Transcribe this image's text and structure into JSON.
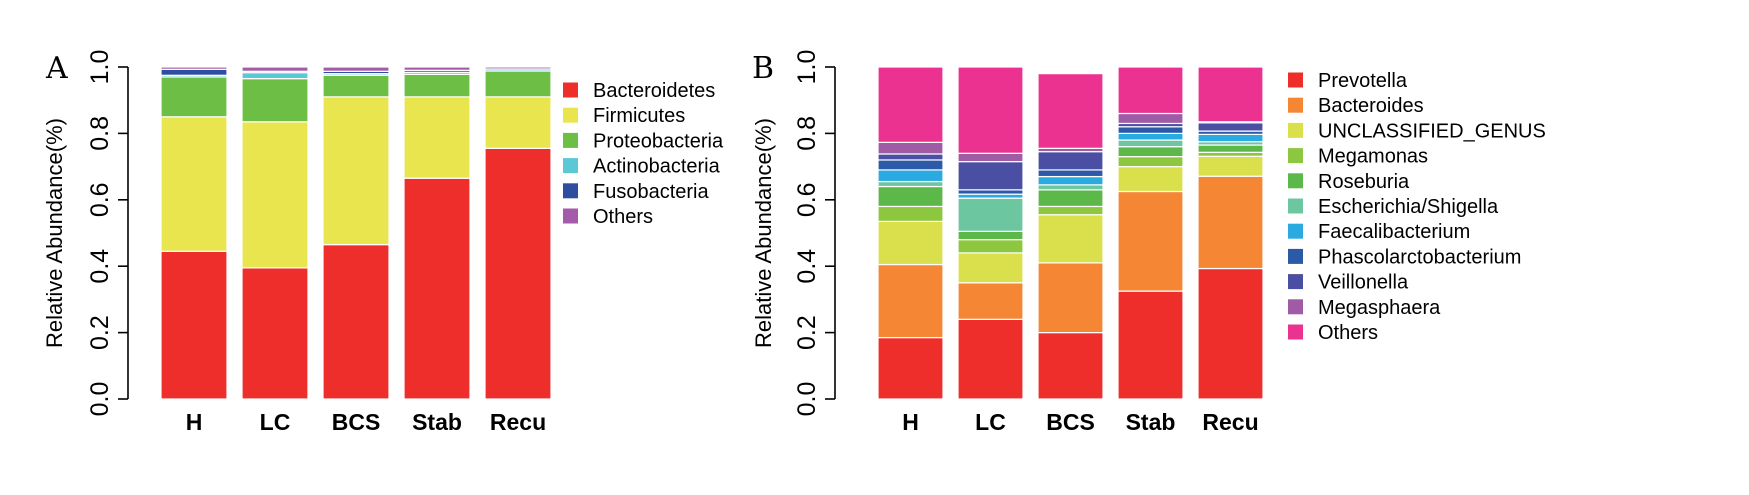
{
  "chart_data": [
    {
      "type": "bar",
      "stacked": true,
      "panel": "A",
      "ylabel": "Relative Abundance(%)",
      "ylim": [
        0,
        1
      ],
      "yticks": [
        "0.0",
        "0.2",
        "0.4",
        "0.6",
        "0.8",
        "1.0"
      ],
      "categories": [
        "H",
        "LC",
        "BCS",
        "Stab",
        "Recu"
      ],
      "legend_position": "right",
      "series": [
        {
          "name": "Bacteroidetes",
          "color": "#EE2E2B",
          "values": [
            0.445,
            0.395,
            0.465,
            0.665,
            0.755
          ]
        },
        {
          "name": "Firmicutes",
          "color": "#E9E54E",
          "values": [
            0.405,
            0.44,
            0.445,
            0.245,
            0.155
          ]
        },
        {
          "name": "Proteobacteria",
          "color": "#6DBE45",
          "values": [
            0.12,
            0.13,
            0.065,
            0.068,
            0.078
          ]
        },
        {
          "name": "Actinobacteria",
          "color": "#5BC8D6",
          "values": [
            0.005,
            0.018,
            0.005,
            0.006,
            0.006
          ]
        },
        {
          "name": "Fusobacteria",
          "color": "#2E4FA0",
          "values": [
            0.018,
            0.004,
            0.007,
            0.006,
            0.0
          ]
        },
        {
          "name": "Others",
          "color": "#A35BAA",
          "values": [
            0.007,
            0.013,
            0.013,
            0.01,
            0.006
          ]
        }
      ]
    },
    {
      "type": "bar",
      "stacked": true,
      "panel": "B",
      "ylabel": "Relative Abundance(%)",
      "ylim": [
        0,
        1
      ],
      "yticks": [
        "0.0",
        "0.2",
        "0.4",
        "0.6",
        "0.8",
        "1.0"
      ],
      "categories": [
        "H",
        "LC",
        "BCS",
        "Stab",
        "Recu"
      ],
      "legend_position": "right",
      "series": [
        {
          "name": "Prevotella",
          "color": "#EE2E2B",
          "values": [
            0.185,
            0.24,
            0.2,
            0.325,
            0.393
          ]
        },
        {
          "name": "Bacteroides",
          "color": "#F58634",
          "values": [
            0.22,
            0.11,
            0.21,
            0.3,
            0.278
          ]
        },
        {
          "name": "UNCLASSIFIED_GENUS",
          "color": "#D9E04C",
          "values": [
            0.13,
            0.09,
            0.145,
            0.075,
            0.06
          ]
        },
        {
          "name": "Megamonas",
          "color": "#8DC63F",
          "values": [
            0.045,
            0.04,
            0.025,
            0.03,
            0.012
          ]
        },
        {
          "name": "Roseburia",
          "color": "#5CB848",
          "values": [
            0.06,
            0.025,
            0.05,
            0.03,
            0.022
          ]
        },
        {
          "name": "Escherichia/Shigella",
          "color": "#6CC6A0",
          "values": [
            0.015,
            0.1,
            0.015,
            0.02,
            0.01
          ]
        },
        {
          "name": "Faecalibacterium",
          "color": "#29ABE2",
          "values": [
            0.035,
            0.012,
            0.025,
            0.02,
            0.022
          ]
        },
        {
          "name": "Phascolarctobacterium",
          "color": "#2C5AA8",
          "values": [
            0.03,
            0.013,
            0.02,
            0.02,
            0.01
          ]
        },
        {
          "name": "Veillonella",
          "color": "#4A4FA3",
          "values": [
            0.018,
            0.085,
            0.055,
            0.01,
            0.025
          ]
        },
        {
          "name": "Megasphaera",
          "color": "#A05BA5",
          "values": [
            0.035,
            0.025,
            0.01,
            0.03,
            0.003
          ]
        },
        {
          "name": "Others",
          "color": "#EC3290",
          "values": [
            0.227,
            0.26,
            0.225,
            0.14,
            0.165
          ]
        }
      ]
    }
  ]
}
